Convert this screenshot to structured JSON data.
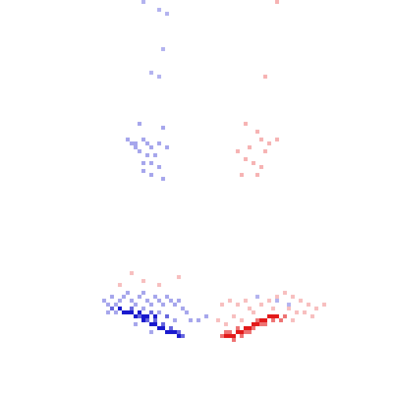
{
  "chart_data": {
    "type": "heatmap",
    "xlim": [
      0,
      100
    ],
    "ylim": [
      0,
      100
    ],
    "zlim": [
      -1,
      1
    ],
    "tick_labels": false,
    "cells": [
      [
        36,
        0,
        -0.3
      ],
      [
        40,
        2,
        -0.3
      ],
      [
        42,
        3,
        -0.3
      ],
      [
        41,
        12,
        -0.3
      ],
      [
        38,
        18,
        -0.3
      ],
      [
        40,
        19,
        -0.3
      ],
      [
        70,
        0,
        0.3
      ],
      [
        67,
        19,
        0.3
      ],
      [
        35,
        31,
        -0.35
      ],
      [
        41,
        32,
        -0.35
      ],
      [
        32,
        35,
        -0.35
      ],
      [
        33,
        36,
        -0.35
      ],
      [
        34,
        36,
        -0.35
      ],
      [
        36,
        35,
        -0.35
      ],
      [
        37,
        36,
        -0.35
      ],
      [
        38,
        37,
        -0.35
      ],
      [
        40,
        36,
        -0.35
      ],
      [
        42,
        37,
        -0.35
      ],
      [
        35,
        38,
        -0.35
      ],
      [
        37,
        39,
        -0.35
      ],
      [
        39,
        39,
        -0.35
      ],
      [
        36,
        41,
        -0.35
      ],
      [
        38,
        41,
        -0.35
      ],
      [
        40,
        42,
        -0.35
      ],
      [
        38,
        44,
        -0.35
      ],
      [
        41,
        45,
        -0.35
      ],
      [
        36,
        43,
        -0.35
      ],
      [
        34,
        37,
        -0.35
      ],
      [
        62,
        31,
        0.3
      ],
      [
        65,
        33,
        0.3
      ],
      [
        66,
        35,
        0.3
      ],
      [
        70,
        35,
        0.3
      ],
      [
        60,
        38,
        0.3
      ],
      [
        63,
        37,
        0.3
      ],
      [
        67,
        38,
        0.3
      ],
      [
        62,
        40,
        0.3
      ],
      [
        64,
        41,
        0.3
      ],
      [
        66,
        42,
        0.3
      ],
      [
        61,
        44,
        0.3
      ],
      [
        65,
        44,
        0.3
      ],
      [
        68,
        36,
        0.3
      ],
      [
        26,
        76,
        -0.35
      ],
      [
        27,
        77,
        -0.35
      ],
      [
        28,
        75,
        -0.35
      ],
      [
        29,
        77,
        -0.35
      ],
      [
        30,
        76,
        -0.35
      ],
      [
        31,
        75,
        -0.35
      ],
      [
        32,
        74,
        -0.35
      ],
      [
        33,
        76,
        -0.35
      ],
      [
        34,
        77,
        -0.35
      ],
      [
        35,
        75,
        -0.35
      ],
      [
        36,
        74,
        -0.35
      ],
      [
        37,
        76,
        -0.35
      ],
      [
        38,
        77,
        -0.35
      ],
      [
        39,
        75,
        -0.35
      ],
      [
        40,
        76,
        -0.35
      ],
      [
        41,
        77,
        -0.35
      ],
      [
        42,
        75,
        -0.35
      ],
      [
        43,
        76,
        -0.35
      ],
      [
        44,
        77,
        -0.35
      ],
      [
        45,
        76,
        -0.35
      ],
      [
        46,
        78,
        -0.35
      ],
      [
        47,
        79,
        -0.35
      ],
      [
        29,
        79,
        -0.35
      ],
      [
        27,
        79,
        -0.35
      ],
      [
        34,
        82,
        -0.35
      ],
      [
        38,
        84,
        -0.35
      ],
      [
        44,
        81,
        -0.35
      ],
      [
        48,
        81,
        -0.35
      ],
      [
        50,
        81,
        -0.35
      ],
      [
        52,
        80,
        -0.35
      ],
      [
        40,
        79,
        -0.35
      ],
      [
        36,
        78,
        -0.35
      ],
      [
        28,
        78,
        -0.6
      ],
      [
        33,
        78,
        -0.6
      ],
      [
        35,
        80,
        -0.6
      ],
      [
        37,
        81,
        -0.6
      ],
      [
        39,
        81,
        -0.6
      ],
      [
        41,
        82,
        -0.6
      ],
      [
        43,
        83,
        -0.6
      ],
      [
        45,
        84,
        -0.6
      ],
      [
        46,
        85,
        -0.6
      ],
      [
        42,
        80,
        -0.6
      ],
      [
        38,
        79,
        -0.6
      ],
      [
        30,
        78,
        -0.9
      ],
      [
        31,
        79,
        -0.9
      ],
      [
        32,
        79,
        -0.9
      ],
      [
        33,
        79,
        -0.9
      ],
      [
        34,
        80,
        -0.9
      ],
      [
        35,
        79,
        -0.9
      ],
      [
        36,
        81,
        -0.9
      ],
      [
        37,
        80,
        -0.9
      ],
      [
        38,
        82,
        -0.9
      ],
      [
        39,
        82,
        -0.9
      ],
      [
        40,
        83,
        -0.9
      ],
      [
        41,
        83,
        -0.9
      ],
      [
        42,
        84,
        -0.9
      ],
      [
        43,
        84,
        -0.9
      ],
      [
        44,
        84,
        -0.9
      ],
      [
        45,
        85,
        -0.9
      ],
      [
        39,
        80,
        -0.9
      ],
      [
        36,
        80,
        -0.9
      ],
      [
        57,
        85,
        0.9
      ],
      [
        58,
        85,
        0.9
      ],
      [
        59,
        85,
        0.9
      ],
      [
        60,
        84,
        0.9
      ],
      [
        61,
        84,
        0.9
      ],
      [
        62,
        83,
        0.9
      ],
      [
        63,
        83,
        0.9
      ],
      [
        64,
        82,
        0.9
      ],
      [
        65,
        82,
        0.9
      ],
      [
        66,
        81,
        0.9
      ],
      [
        67,
        81,
        0.9
      ],
      [
        68,
        80,
        0.9
      ],
      [
        69,
        80,
        0.9
      ],
      [
        70,
        80,
        0.9
      ],
      [
        56,
        85,
        0.55
      ],
      [
        57,
        84,
        0.55
      ],
      [
        58,
        84,
        0.55
      ],
      [
        59,
        86,
        0.55
      ],
      [
        61,
        85,
        0.55
      ],
      [
        62,
        84,
        0.55
      ],
      [
        63,
        84,
        0.55
      ],
      [
        64,
        83,
        0.55
      ],
      [
        66,
        82,
        0.55
      ],
      [
        67,
        82,
        0.55
      ],
      [
        69,
        81,
        0.55
      ],
      [
        71,
        81,
        0.55
      ],
      [
        72,
        80,
        0.55
      ],
      [
        60,
        83,
        0.55
      ],
      [
        65,
        81,
        0.55
      ],
      [
        56,
        77,
        0.25
      ],
      [
        58,
        76,
        0.25
      ],
      [
        60,
        77,
        0.25
      ],
      [
        62,
        76,
        0.25
      ],
      [
        63,
        78,
        0.25
      ],
      [
        66,
        77,
        0.25
      ],
      [
        68,
        76,
        0.25
      ],
      [
        70,
        75,
        0.25
      ],
      [
        72,
        74,
        0.25
      ],
      [
        74,
        75,
        0.25
      ],
      [
        76,
        76,
        0.25
      ],
      [
        78,
        77,
        0.25
      ],
      [
        80,
        78,
        0.25
      ],
      [
        82,
        77,
        0.25
      ],
      [
        73,
        78,
        0.25
      ],
      [
        75,
        79,
        0.25
      ],
      [
        77,
        79,
        0.25
      ],
      [
        59,
        80,
        0.25
      ],
      [
        55,
        81,
        0.25
      ],
      [
        64,
        79,
        0.25
      ],
      [
        69,
        78,
        0.25
      ],
      [
        79,
        80,
        0.25
      ],
      [
        61,
        81,
        0.25
      ],
      [
        57,
        82,
        0.25
      ],
      [
        74,
        81,
        0.25
      ],
      [
        33,
        69,
        0.25
      ],
      [
        45,
        70,
        0.25
      ],
      [
        36,
        71,
        0.25
      ],
      [
        40,
        72,
        0.25
      ],
      [
        30,
        72,
        0.25
      ],
      [
        65,
        75,
        -0.3
      ],
      [
        70,
        76,
        -0.3
      ],
      [
        73,
        77,
        -0.3
      ]
    ]
  }
}
